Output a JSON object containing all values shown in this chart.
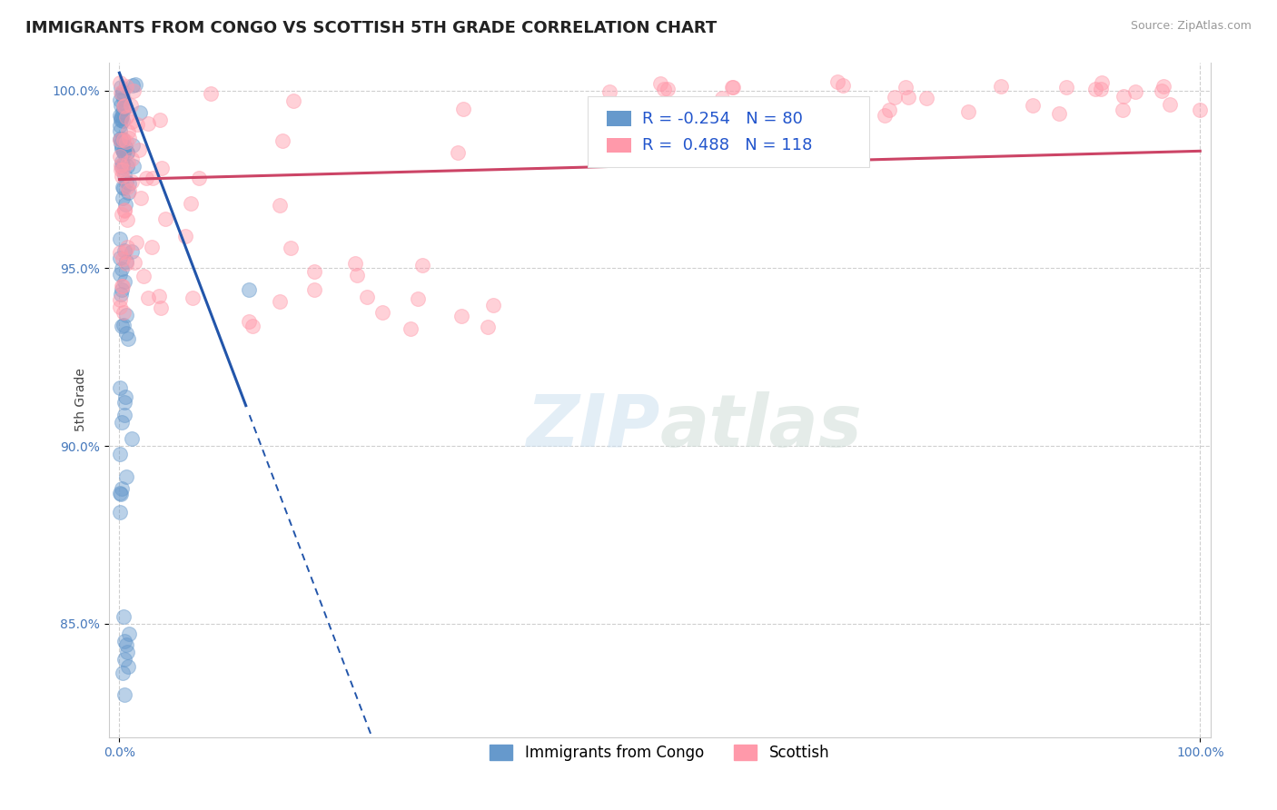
{
  "title": "IMMIGRANTS FROM CONGO VS SCOTTISH 5TH GRADE CORRELATION CHART",
  "source": "Source: ZipAtlas.com",
  "ylabel": "5th Grade",
  "xlim": [
    -0.01,
    1.01
  ],
  "ylim": [
    0.818,
    1.008
  ],
  "blue_color": "#6699CC",
  "pink_color": "#FF99AA",
  "blue_line_color": "#2255AA",
  "pink_line_color": "#CC4466",
  "blue_R": -0.254,
  "blue_N": 80,
  "pink_R": 0.488,
  "pink_N": 118,
  "background_color": "#ffffff",
  "grid_color": "#bbbbbb",
  "title_fontsize": 13,
  "axis_label_fontsize": 10,
  "tick_fontsize": 10,
  "annotation_fontsize": 14,
  "y_ticks": [
    0.85,
    0.9,
    0.95,
    1.0
  ],
  "y_tick_labels": [
    "85.0%",
    "90.0%",
    "95.0%",
    "100.0%"
  ],
  "x_ticks": [
    0.0,
    1.0
  ],
  "x_tick_labels": [
    "0.0%",
    "100.0%"
  ],
  "blue_trend_solid_end": 0.12,
  "blue_slope": -0.8,
  "blue_intercept": 1.005,
  "pink_slope": 0.008,
  "pink_intercept": 0.975
}
